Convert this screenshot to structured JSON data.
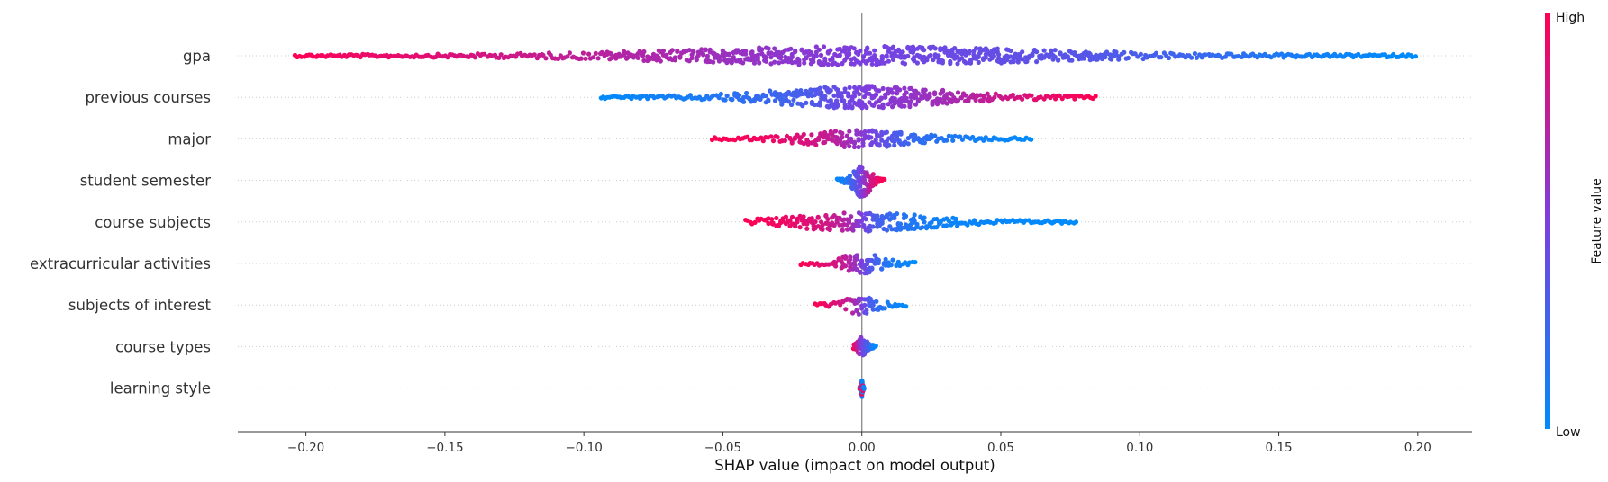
{
  "chart_data": {
    "type": "scatter",
    "subtype": "shap-beeswarm",
    "xlabel": "SHAP value (impact on model output)",
    "xlim": [
      -0.2245,
      0.2195
    ],
    "xticks": [
      -0.2,
      -0.15,
      -0.1,
      -0.05,
      0.0,
      0.05,
      0.1,
      0.15,
      0.2
    ],
    "xtick_labels": [
      "−0.20",
      "−0.15",
      "−0.10",
      "−0.05",
      "0.00",
      "0.05",
      "0.10",
      "0.15",
      "0.20"
    ],
    "zero_line": true,
    "colorbar": {
      "title": "Feature value",
      "high_label": "High",
      "low_label": "Low",
      "low_color": "#008bfb",
      "high_color": "#ff0052"
    },
    "features": [
      {
        "name": "gpa",
        "min": -0.204,
        "max": 0.199,
        "spread": 0.45,
        "colorDir": -1,
        "points": [
          [
            -0.204,
            1.0
          ],
          [
            -0.19,
            0.95
          ],
          [
            -0.175,
            0.92
          ],
          [
            -0.16,
            0.9
          ],
          [
            -0.145,
            0.85
          ],
          [
            -0.13,
            0.82
          ],
          [
            -0.115,
            0.78
          ],
          [
            -0.1,
            0.75
          ],
          [
            -0.085,
            0.7
          ],
          [
            -0.07,
            0.68
          ],
          [
            -0.05,
            0.62
          ],
          [
            -0.02,
            0.55
          ],
          [
            0.0,
            0.5
          ],
          [
            0.02,
            0.45
          ],
          [
            0.05,
            0.4
          ],
          [
            0.08,
            0.35
          ],
          [
            0.1,
            0.3
          ],
          [
            0.13,
            0.2
          ],
          [
            0.15,
            0.12
          ],
          [
            0.17,
            0.05
          ],
          [
            0.199,
            0.0
          ]
        ]
      },
      {
        "name": "previous courses",
        "min": -0.094,
        "max": 0.084,
        "spread": 0.55,
        "colorDir": 1,
        "points": [
          [
            -0.094,
            0.0
          ],
          [
            -0.08,
            0.05
          ],
          [
            -0.06,
            0.1
          ],
          [
            -0.04,
            0.2
          ],
          [
            -0.02,
            0.3
          ],
          [
            -0.005,
            0.45
          ],
          [
            0.0,
            0.5
          ],
          [
            0.01,
            0.55
          ],
          [
            0.03,
            0.65
          ],
          [
            0.05,
            0.8
          ],
          [
            0.065,
            0.9
          ],
          [
            0.084,
            1.0
          ]
        ]
      },
      {
        "name": "major",
        "min": -0.054,
        "max": 0.061,
        "spread": 0.4,
        "colorDir": -1,
        "points": [
          [
            -0.054,
            1.0
          ],
          [
            -0.035,
            0.95
          ],
          [
            -0.02,
            0.85
          ],
          [
            -0.01,
            0.75
          ],
          [
            0.0,
            0.55
          ],
          [
            0.01,
            0.35
          ],
          [
            0.02,
            0.2
          ],
          [
            0.04,
            0.08
          ],
          [
            0.061,
            0.0
          ]
        ]
      },
      {
        "name": "student semester",
        "min": -0.009,
        "max": 0.008,
        "spread": 0.85,
        "colorDir": 1,
        "points": [
          [
            -0.009,
            0.0
          ],
          [
            -0.005,
            0.15
          ],
          [
            0.0,
            0.5
          ],
          [
            0.004,
            0.85
          ],
          [
            0.008,
            1.0
          ]
        ]
      },
      {
        "name": "course subjects",
        "min": -0.042,
        "max": 0.077,
        "spread": 0.45,
        "colorDir": -1,
        "points": [
          [
            -0.042,
            1.0
          ],
          [
            -0.03,
            0.95
          ],
          [
            -0.015,
            0.85
          ],
          [
            -0.005,
            0.7
          ],
          [
            0.0,
            0.5
          ],
          [
            0.005,
            0.3
          ],
          [
            0.015,
            0.15
          ],
          [
            0.03,
            0.05
          ],
          [
            0.077,
            0.0
          ]
        ]
      },
      {
        "name": "extracurricular activities",
        "min": -0.022,
        "max": 0.019,
        "spread": 0.5,
        "colorDir": -1,
        "points": [
          [
            -0.022,
            1.0
          ],
          [
            -0.01,
            0.85
          ],
          [
            -0.004,
            0.7
          ],
          [
            0.0,
            0.5
          ],
          [
            0.004,
            0.3
          ],
          [
            0.01,
            0.12
          ],
          [
            0.019,
            0.0
          ]
        ]
      },
      {
        "name": "subjects of interest",
        "min": -0.017,
        "max": 0.016,
        "spread": 0.45,
        "colorDir": -1,
        "points": [
          [
            -0.017,
            1.0
          ],
          [
            -0.008,
            0.85
          ],
          [
            -0.003,
            0.7
          ],
          [
            0.0,
            0.5
          ],
          [
            0.003,
            0.3
          ],
          [
            0.008,
            0.12
          ],
          [
            0.016,
            0.0
          ]
        ]
      },
      {
        "name": "course types",
        "min": -0.003,
        "max": 0.005,
        "spread": 0.45,
        "colorDir": -1,
        "points": [
          [
            -0.003,
            1.0
          ],
          [
            0.0,
            0.5
          ],
          [
            0.002,
            0.3
          ],
          [
            0.005,
            0.0
          ]
        ]
      },
      {
        "name": "learning style",
        "min": -0.0008,
        "max": 0.0008,
        "spread": 0.45,
        "colorDir": 0,
        "points": [
          [
            -0.0008,
            0.5
          ],
          [
            0.0,
            0.5
          ],
          [
            0.0008,
            0.5
          ]
        ]
      }
    ]
  }
}
